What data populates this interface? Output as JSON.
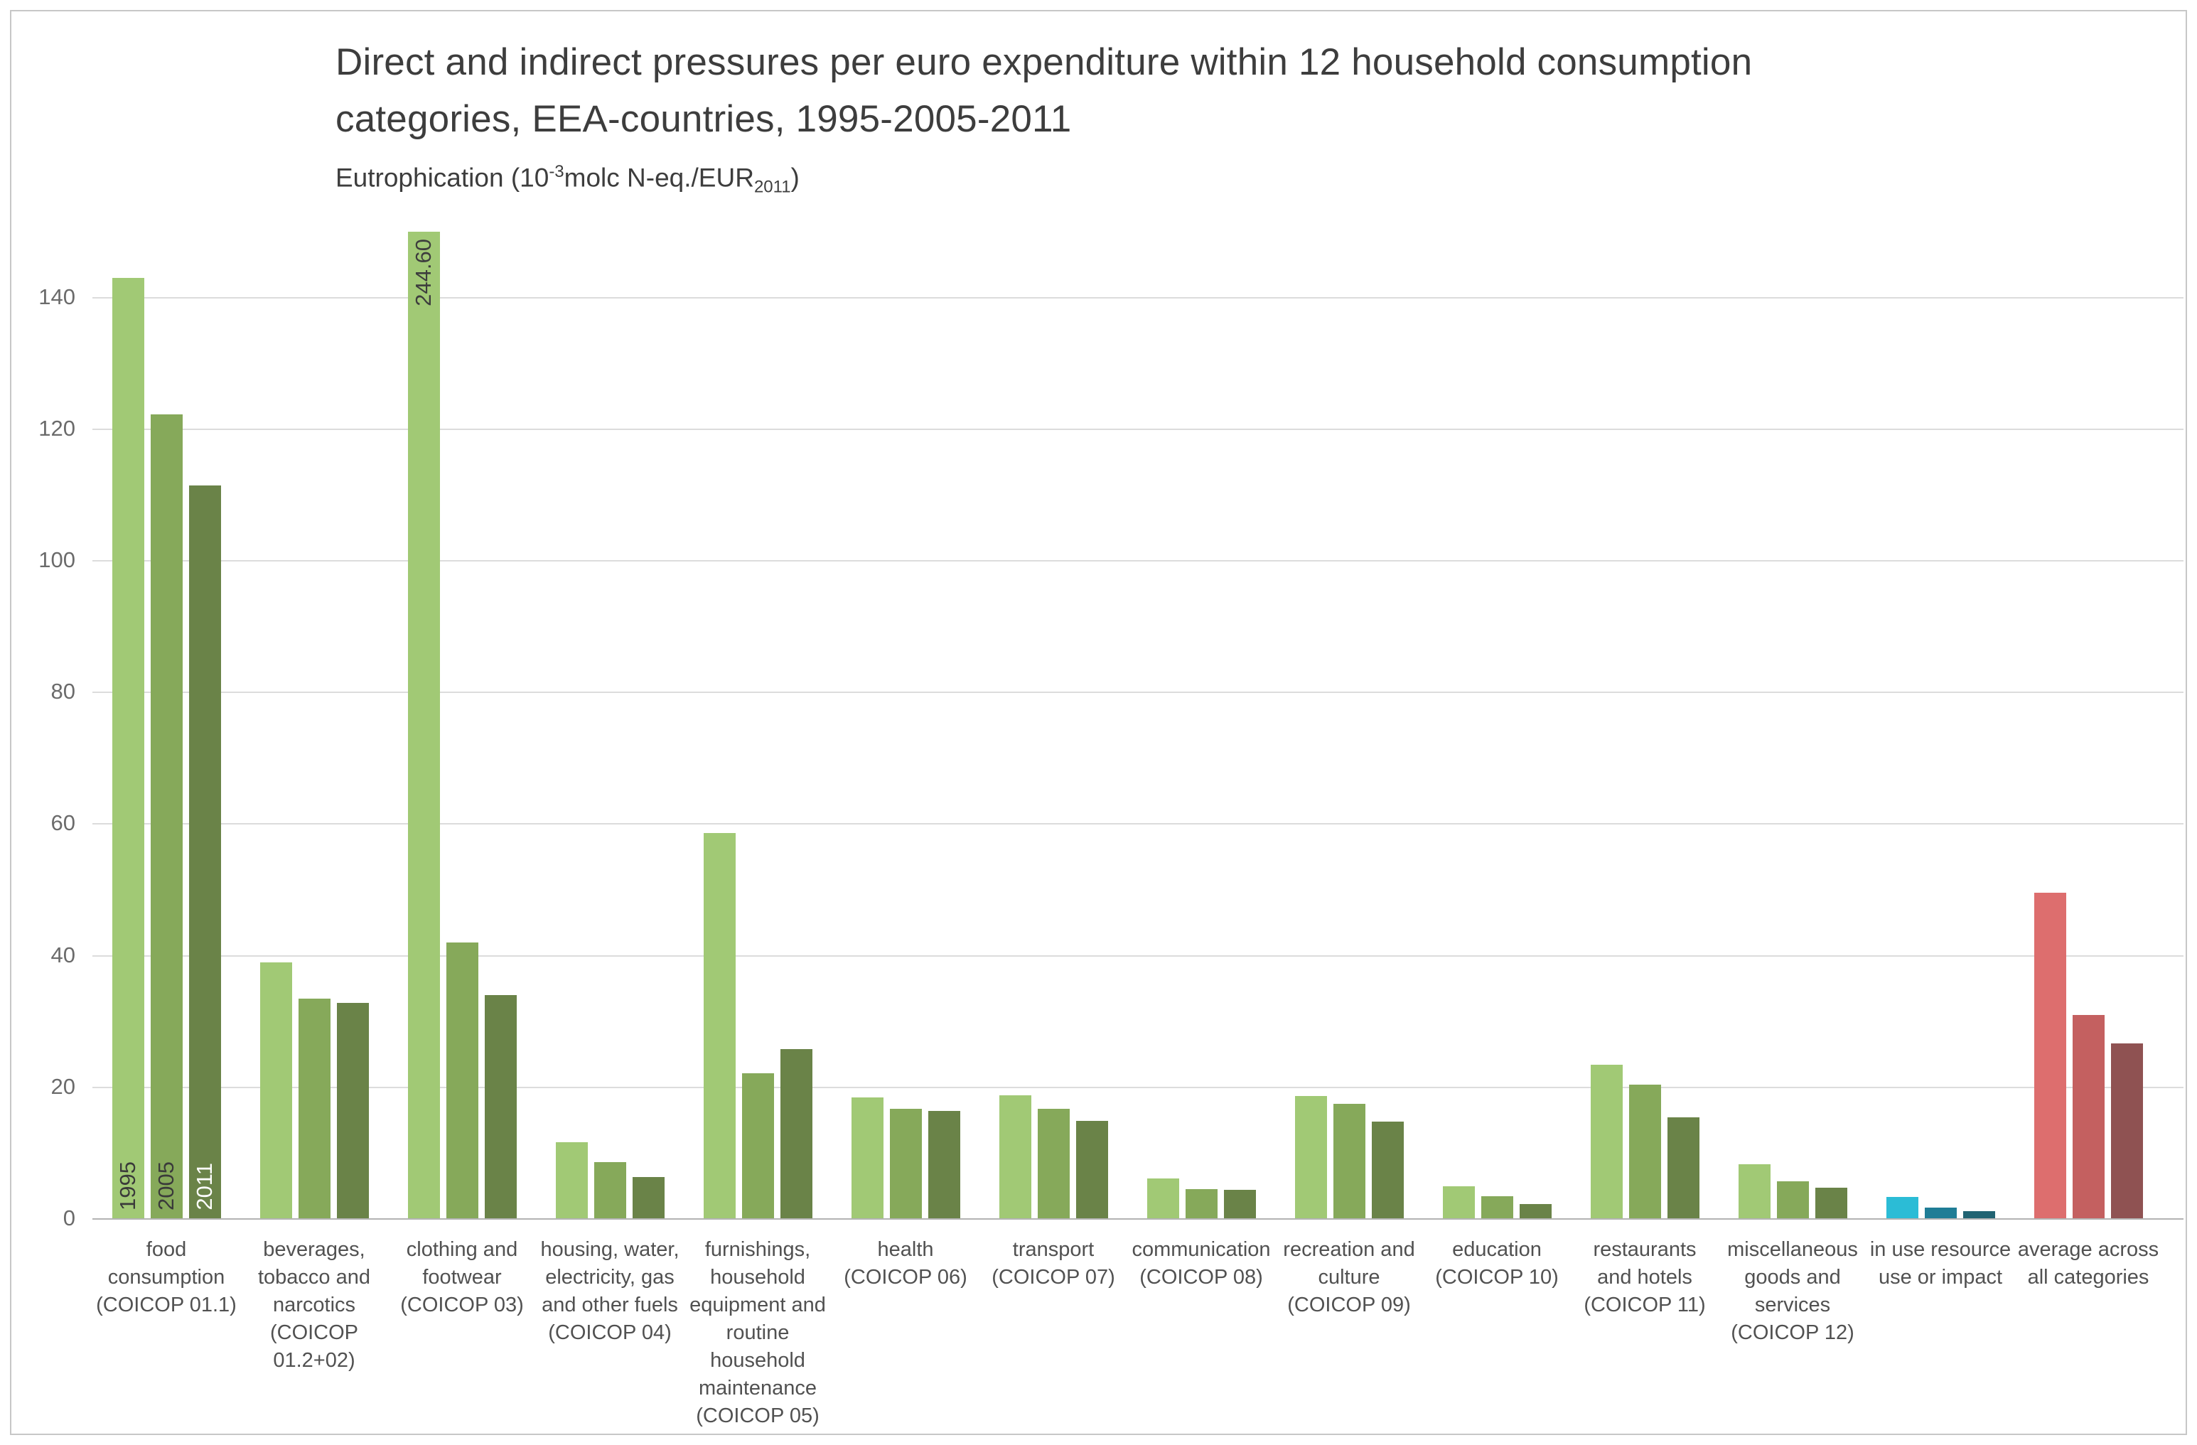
{
  "header": {
    "title": "Direct and indirect pressures per euro expenditure within 12 household consumption\ncategories, EEA-countries, 1995-2005-2011",
    "subtitle": {
      "prefix": "Eutrophication (10",
      "sup": "-3",
      "mid": "molc N-eq./EUR",
      "sub": "2011",
      "suffix": ")"
    }
  },
  "chart_data": {
    "type": "bar",
    "title": "Direct and indirect pressures per euro expenditure within 12 household consumption categories, EEA-countries, 1995-2005-2011",
    "ylabel": "Eutrophication (10^-3 molc N-eq./EUR2011)",
    "xlabel": "",
    "ylim": [
      0,
      150
    ],
    "yticks": [
      0,
      20,
      40,
      60,
      80,
      100,
      120,
      140
    ],
    "grid": true,
    "legend_position": "none (years labeled on bars of first group)",
    "categories": [
      "food consumption (COICOP 01.1)",
      "beverages, tobacco and narcotics (COICOP 01.2+02)",
      "clothing and footwear (COICOP 03)",
      "housing, water, electricity, gas and other fuels (COICOP 04)",
      "furnishings, household equipment and routine household maintenance (COICOP 05)",
      "health (COICOP 06)",
      "transport (COICOP 07)",
      "communication (COICOP 08)",
      "recreation and culture (COICOP 09)",
      "education (COICOP 10)",
      "restaurants and hotels (COICOP 11)",
      "miscellaneous goods and services (COICOP 12)",
      "in use resource use or impact",
      "average across all categories"
    ],
    "series": [
      {
        "name": "1995",
        "values": [
          143.0,
          39.0,
          244.6,
          11.7,
          58.6,
          18.5,
          18.8,
          6.2,
          18.7,
          5.0,
          23.4,
          8.3,
          3.4,
          49.6
        ]
      },
      {
        "name": "2005",
        "values": [
          122.2,
          33.5,
          42.0,
          8.6,
          22.1,
          16.7,
          16.7,
          4.5,
          17.5,
          3.5,
          20.4,
          5.7,
          1.7,
          31.0
        ]
      },
      {
        "name": "2011",
        "values": [
          111.5,
          32.8,
          34.0,
          6.4,
          25.8,
          16.4,
          14.9,
          4.4,
          14.8,
          2.3,
          15.4,
          4.8,
          1.2,
          26.7
        ]
      }
    ],
    "clipped_bar": {
      "category_index": 2,
      "series_index": 0,
      "label": "244.60",
      "note": "bar clipped at y-axis max 150"
    },
    "palette": {
      "greens": [
        "#a1c975",
        "#86a95a",
        "#6a8348"
      ],
      "in_use": [
        "#2bbcd6",
        "#1f7d96",
        "#216372"
      ],
      "average": [
        "#dd6e6e",
        "#c46060",
        "#8f5252"
      ]
    },
    "category_palette": [
      "greens",
      "greens",
      "greens",
      "greens",
      "greens",
      "greens",
      "greens",
      "greens",
      "greens",
      "greens",
      "greens",
      "greens",
      "in_use",
      "average"
    ],
    "year_label_colors": [
      "#3a3a3a",
      "#3a3a3a",
      "#ffffff"
    ],
    "colors_misc": {
      "gridline": "#dcdcdc",
      "axis_line": "#b3b3b3",
      "tick_label": "#6b6b6b",
      "category_label": "#515151",
      "title_text": "#3d3d3d",
      "frame_border": "#c7c7c7"
    }
  }
}
